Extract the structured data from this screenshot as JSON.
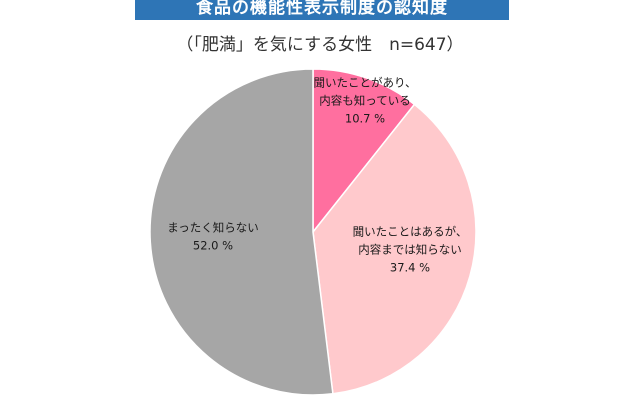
{
  "title": "食品の機能性表示制度の認知度",
  "subtitle": "（「肥満」を気にする女性　n=647）",
  "colors": {
    "banner": "#2e75b6",
    "slice_0": "#ff6f9f",
    "slice_1": "#ffc9cc",
    "slice_2": "#a6a6a6"
  },
  "chart_data": {
    "type": "pie",
    "title": "食品の機能性表示制度の認知度",
    "subtitle": "（「肥満」を気にする女性　n=647）",
    "unit": "%",
    "slices": [
      {
        "label_lines": [
          "聞いたことがあり、",
          "内容も知っている"
        ],
        "value": 10.7,
        "value_text": "10.7 %",
        "color": "#ff6f9f"
      },
      {
        "label_lines": [
          "聞いたことはあるが、",
          "内容までは知らない"
        ],
        "value": 37.4,
        "value_text": "37.4 %",
        "color": "#ffc9cc"
      },
      {
        "label_lines": [
          "まったく知らない"
        ],
        "value": 52.0,
        "value_text": "52.0 %",
        "color": "#a6a6a6"
      }
    ]
  }
}
